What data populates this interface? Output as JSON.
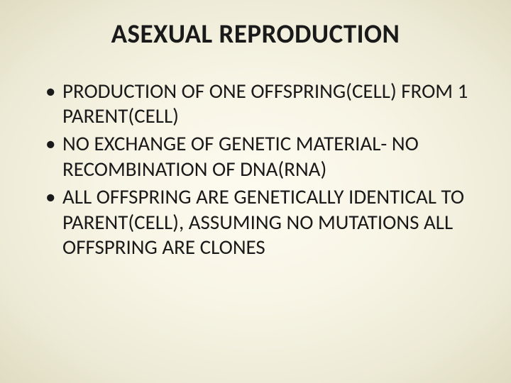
{
  "slide": {
    "title": "ASEXUAL REPRODUCTION",
    "title_fontsize": 37,
    "title_color": "#1a1a1a",
    "bullets": [
      "PRODUCTION OF ONE OFFSPRING(CELL) FROM 1 PARENT(CELL)",
      "NO EXCHANGE OF GENETIC MATERIAL- NO RECOMBINATION OF DNA(RNA)",
      "ALL OFFSPRING ARE GENETICALLY IDENTICAL TO PARENT(CELL), ASSUMING NO MUTATIONS ALL OFFSPRING ARE CLONES"
    ],
    "bullet_fontsize": 29,
    "bullet_color": "#1a1a1a",
    "background_gradient": {
      "center": "#fdfbf0",
      "mid": "#f8f5e6",
      "outer": "#edead6",
      "edge": "#e0dcc2"
    },
    "font_family": "Calibri"
  }
}
